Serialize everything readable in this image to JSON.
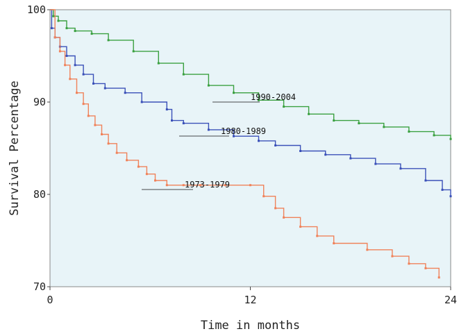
{
  "chart_data": {
    "type": "line",
    "step": true,
    "xlabel": "Time in months",
    "ylabel": "Survival Percentage",
    "xlim": [
      0,
      24
    ],
    "ylim": [
      70,
      100
    ],
    "xticks": [
      "0",
      "12",
      "24"
    ],
    "yticks": [
      "70",
      "80",
      "90",
      "100"
    ],
    "grid": false,
    "legend": "inline labels near curves",
    "background": "#e8f4f8",
    "series": [
      {
        "name": "1990-2004",
        "color": "#3aa040",
        "x": [
          0,
          0.2,
          0.5,
          1.0,
          1.5,
          2.5,
          3.5,
          5.0,
          6.5,
          8.0,
          9.5,
          11.0,
          12.5,
          14.0,
          15.5,
          17.0,
          18.5,
          20.0,
          21.5,
          23.0,
          24.0
        ],
        "y": [
          100,
          99.3,
          98.8,
          98.0,
          97.7,
          97.4,
          96.7,
          95.5,
          94.2,
          93.0,
          91.8,
          91.0,
          90.2,
          89.5,
          88.7,
          88.0,
          87.7,
          87.3,
          86.8,
          86.4,
          86.0
        ]
      },
      {
        "name": "1980-1989",
        "color": "#3a50b8",
        "x": [
          0,
          0.1,
          0.3,
          0.6,
          1.0,
          1.5,
          2.0,
          2.6,
          3.3,
          4.5,
          5.5,
          7.0,
          7.3,
          8.0,
          9.5,
          11.0,
          12.5,
          13.5,
          15.0,
          16.5,
          18.0,
          19.5,
          21.0,
          22.5,
          23.5,
          24.0
        ],
        "y": [
          100,
          98.0,
          97.0,
          96.0,
          95.0,
          94.0,
          93.0,
          92.0,
          91.5,
          91.0,
          90.0,
          89.2,
          88.0,
          87.7,
          87.0,
          86.3,
          85.8,
          85.3,
          84.7,
          84.3,
          83.9,
          83.3,
          82.8,
          81.5,
          80.5,
          79.8
        ]
      },
      {
        "name": "1973-1979",
        "color": "#f0825a",
        "x": [
          0,
          0.3,
          0.6,
          0.9,
          1.2,
          1.6,
          2.0,
          2.3,
          2.7,
          3.1,
          3.5,
          4.0,
          4.6,
          5.3,
          5.8,
          6.3,
          7.0,
          8.0,
          9.0,
          10.5,
          12.0,
          12.8,
          13.5,
          14.0,
          15.0,
          16.0,
          17.0,
          19.0,
          20.5,
          21.5,
          22.5,
          23.3
        ],
        "y": [
          100,
          97.0,
          95.5,
          94.0,
          92.5,
          91.0,
          89.8,
          88.5,
          87.5,
          86.5,
          85.5,
          84.5,
          83.7,
          83.0,
          82.2,
          81.5,
          81.0,
          81.0,
          81.0,
          81.0,
          81.0,
          79.8,
          78.5,
          77.5,
          76.5,
          75.5,
          74.7,
          74.0,
          73.3,
          72.5,
          72.0,
          71.0
        ]
      }
    ]
  }
}
